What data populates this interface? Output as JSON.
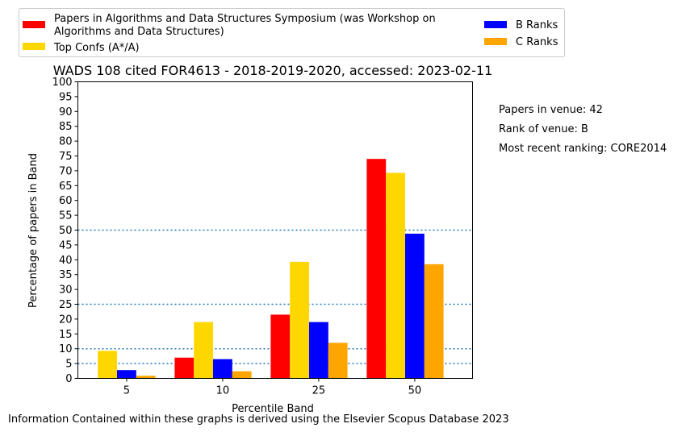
{
  "chart_data": {
    "type": "bar",
    "title": "WADS 108 cited FOR4613 - 2018-2019-2020, accessed: 2023-02-11",
    "xlabel": "Percentile Band",
    "ylabel": "Percentage of papers in Band",
    "categories": [
      "5",
      "10",
      "25",
      "50"
    ],
    "ylim": [
      0,
      100
    ],
    "yticks": [
      "0",
      "5",
      "10",
      "15",
      "20",
      "25",
      "30",
      "35",
      "40",
      "45",
      "50",
      "55",
      "60",
      "65",
      "70",
      "75",
      "80",
      "85",
      "90",
      "95",
      "100"
    ],
    "reference_lines": [
      5,
      10,
      25,
      50
    ],
    "grid": false,
    "legend_position": "top",
    "series": [
      {
        "name": "Papers in Algorithms and Data Structures Symposium (was Workshop on Algorithms and Data Structures)",
        "color": "#ff0000",
        "values": [
          0,
          7,
          21.5,
          74
        ]
      },
      {
        "name": "Top Confs (A*/A)",
        "color": "#ffd700",
        "values": [
          9.3,
          19,
          39.3,
          69.3
        ]
      },
      {
        "name": "B Ranks",
        "color": "#0000ff",
        "values": [
          2.8,
          6.5,
          19,
          48.8
        ]
      },
      {
        "name": "C Ranks",
        "color": "#ffa500",
        "values": [
          0.9,
          2.4,
          12,
          38.5
        ]
      }
    ]
  },
  "legend": {
    "entry1_line1": "Papers in Algorithms and Data Structures Symposium (was Workshop on",
    "entry1_line2": "Algorithms and Data Structures)",
    "entry2": "Top Confs (A*/A)",
    "entry3": "B Ranks",
    "entry4": "C Ranks"
  },
  "info": {
    "papers": "Papers in venue: 42",
    "rank": "Rank of venue: B",
    "recent": "Most recent ranking: CORE2014"
  },
  "footer": "Information Contained within these graphs is derived using the Elsevier Scopus Database 2023",
  "colors": {
    "reference_line": "#1f77b4"
  }
}
